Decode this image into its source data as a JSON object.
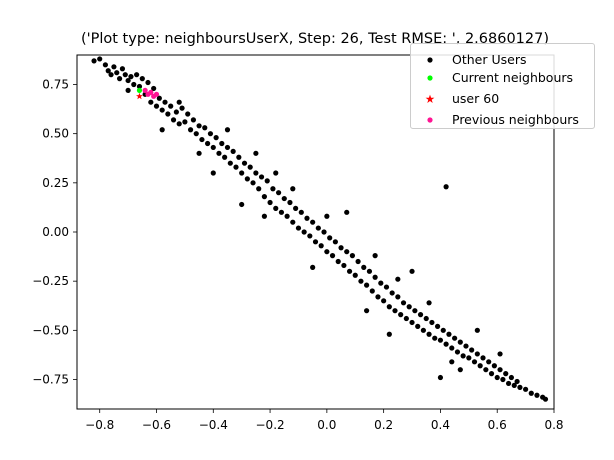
{
  "title": "('Plot type: neighboursUserX, Step: 26, Test RMSE: ', 2.6860127)",
  "legend": [
    {
      "label": "Other Users",
      "color": "#000000",
      "marker": "dot"
    },
    {
      "label": "Current neighbours",
      "color": "#00ff00",
      "marker": "dot"
    },
    {
      "label": "user 60",
      "color": "#ff0000",
      "marker": "star"
    },
    {
      "label": "Previous neighbours",
      "color": "#ff1493",
      "marker": "dot"
    }
  ],
  "chart_data": {
    "type": "scatter",
    "title": "('Plot type: neighboursUserX, Step: 26, Test RMSE: ', 2.6860127)",
    "xlabel": "",
    "ylabel": "",
    "xlim": [
      -0.88,
      0.8
    ],
    "ylim": [
      -0.9,
      0.9
    ],
    "xticks": [
      "−0.8",
      "−0.6",
      "−0.4",
      "−0.2",
      "0.0",
      "0.2",
      "0.4",
      "0.6",
      "0.8"
    ],
    "yticks": [
      "−0.75",
      "−0.50",
      "−0.25",
      "0.00",
      "0.25",
      "0.50",
      "0.75"
    ],
    "grid": false,
    "legend_position": "top-right",
    "series": [
      {
        "name": "Other Users",
        "color": "#000000",
        "marker": "dot",
        "points": [
          [
            -0.82,
            0.87
          ],
          [
            -0.8,
            0.88
          ],
          [
            -0.78,
            0.85
          ],
          [
            -0.77,
            0.82
          ],
          [
            -0.76,
            0.8
          ],
          [
            -0.75,
            0.84
          ],
          [
            -0.74,
            0.81
          ],
          [
            -0.73,
            0.78
          ],
          [
            -0.72,
            0.83
          ],
          [
            -0.71,
            0.8
          ],
          [
            -0.7,
            0.77
          ],
          [
            -0.7,
            0.72
          ],
          [
            -0.69,
            0.79
          ],
          [
            -0.68,
            0.75
          ],
          [
            -0.67,
            0.8
          ],
          [
            -0.66,
            0.74
          ],
          [
            -0.65,
            0.78
          ],
          [
            -0.64,
            0.7
          ],
          [
            -0.63,
            0.76
          ],
          [
            -0.62,
            0.66
          ],
          [
            -0.61,
            0.73
          ],
          [
            -0.6,
            0.64
          ],
          [
            -0.59,
            0.68
          ],
          [
            -0.58,
            0.62
          ],
          [
            -0.57,
            0.66
          ],
          [
            -0.56,
            0.6
          ],
          [
            -0.55,
            0.64
          ],
          [
            -0.54,
            0.57
          ],
          [
            -0.53,
            0.61
          ],
          [
            -0.52,
            0.55
          ],
          [
            -0.51,
            0.63
          ],
          [
            -0.5,
            0.56
          ],
          [
            -0.49,
            0.6
          ],
          [
            -0.48,
            0.52
          ],
          [
            -0.47,
            0.57
          ],
          [
            -0.46,
            0.5
          ],
          [
            -0.45,
            0.54
          ],
          [
            -0.44,
            0.47
          ],
          [
            -0.43,
            0.53
          ],
          [
            -0.42,
            0.45
          ],
          [
            -0.41,
            0.5
          ],
          [
            -0.4,
            0.43
          ],
          [
            -0.39,
            0.48
          ],
          [
            -0.38,
            0.4
          ],
          [
            -0.37,
            0.45
          ],
          [
            -0.36,
            0.38
          ],
          [
            -0.35,
            0.43
          ],
          [
            -0.34,
            0.35
          ],
          [
            -0.33,
            0.41
          ],
          [
            -0.32,
            0.33
          ],
          [
            -0.31,
            0.38
          ],
          [
            -0.3,
            0.3
          ],
          [
            -0.29,
            0.35
          ],
          [
            -0.28,
            0.27
          ],
          [
            -0.27,
            0.33
          ],
          [
            -0.26,
            0.25
          ],
          [
            -0.25,
            0.3
          ],
          [
            -0.24,
            0.22
          ],
          [
            -0.23,
            0.28
          ],
          [
            -0.22,
            0.18
          ],
          [
            -0.21,
            0.26
          ],
          [
            -0.2,
            0.15
          ],
          [
            -0.19,
            0.22
          ],
          [
            -0.18,
            0.12
          ],
          [
            -0.17,
            0.2
          ],
          [
            -0.16,
            0.1
          ],
          [
            -0.15,
            0.17
          ],
          [
            -0.14,
            0.08
          ],
          [
            -0.13,
            0.15
          ],
          [
            -0.12,
            0.05
          ],
          [
            -0.11,
            0.12
          ],
          [
            -0.1,
            0.02
          ],
          [
            -0.09,
            0.1
          ],
          [
            -0.08,
            0.0
          ],
          [
            -0.07,
            0.07
          ],
          [
            -0.06,
            -0.02
          ],
          [
            -0.05,
            0.05
          ],
          [
            -0.04,
            -0.05
          ],
          [
            -0.03,
            0.02
          ],
          [
            -0.02,
            -0.07
          ],
          [
            -0.01,
            0.0
          ],
          [
            0.0,
            -0.1
          ],
          [
            0.01,
            -0.03
          ],
          [
            0.02,
            -0.12
          ],
          [
            0.03,
            -0.05
          ],
          [
            0.04,
            -0.15
          ],
          [
            0.05,
            -0.08
          ],
          [
            0.06,
            -0.17
          ],
          [
            0.07,
            -0.1
          ],
          [
            0.08,
            -0.2
          ],
          [
            0.09,
            -0.12
          ],
          [
            0.1,
            -0.22
          ],
          [
            0.11,
            -0.15
          ],
          [
            0.12,
            -0.25
          ],
          [
            0.13,
            -0.18
          ],
          [
            0.14,
            -0.27
          ],
          [
            0.15,
            -0.2
          ],
          [
            0.16,
            -0.3
          ],
          [
            0.17,
            -0.23
          ],
          [
            0.18,
            -0.33
          ],
          [
            0.19,
            -0.26
          ],
          [
            0.2,
            -0.35
          ],
          [
            0.21,
            -0.28
          ],
          [
            0.22,
            -0.38
          ],
          [
            0.23,
            -0.31
          ],
          [
            0.24,
            -0.4
          ],
          [
            0.25,
            -0.33
          ],
          [
            0.26,
            -0.42
          ],
          [
            0.27,
            -0.36
          ],
          [
            0.28,
            -0.44
          ],
          [
            0.29,
            -0.38
          ],
          [
            0.3,
            -0.46
          ],
          [
            0.31,
            -0.4
          ],
          [
            0.32,
            -0.48
          ],
          [
            0.33,
            -0.42
          ],
          [
            0.34,
            -0.5
          ],
          [
            0.35,
            -0.44
          ],
          [
            0.36,
            -0.52
          ],
          [
            0.37,
            -0.46
          ],
          [
            0.38,
            -0.54
          ],
          [
            0.39,
            -0.48
          ],
          [
            0.4,
            -0.55
          ],
          [
            0.41,
            -0.5
          ],
          [
            0.42,
            -0.57
          ],
          [
            0.43,
            -0.52
          ],
          [
            0.44,
            -0.59
          ],
          [
            0.45,
            -0.54
          ],
          [
            0.46,
            -0.61
          ],
          [
            0.47,
            -0.56
          ],
          [
            0.48,
            -0.63
          ],
          [
            0.49,
            -0.58
          ],
          [
            0.5,
            -0.64
          ],
          [
            0.51,
            -0.6
          ],
          [
            0.52,
            -0.66
          ],
          [
            0.53,
            -0.62
          ],
          [
            0.54,
            -0.68
          ],
          [
            0.55,
            -0.64
          ],
          [
            0.56,
            -0.7
          ],
          [
            0.57,
            -0.66
          ],
          [
            0.58,
            -0.72
          ],
          [
            0.59,
            -0.68
          ],
          [
            0.6,
            -0.74
          ],
          [
            0.61,
            -0.7
          ],
          [
            0.62,
            -0.75
          ],
          [
            0.63,
            -0.72
          ],
          [
            0.64,
            -0.77
          ],
          [
            0.65,
            -0.74
          ],
          [
            0.66,
            -0.78
          ],
          [
            0.67,
            -0.76
          ],
          [
            0.68,
            -0.79
          ],
          [
            0.7,
            -0.8
          ],
          [
            0.72,
            -0.82
          ],
          [
            0.74,
            -0.83
          ],
          [
            0.76,
            -0.84
          ],
          [
            0.77,
            -0.85
          ],
          [
            0.42,
            0.23
          ],
          [
            0.4,
            -0.74
          ],
          [
            0.53,
            -0.5
          ],
          [
            0.47,
            -0.7
          ],
          [
            -0.45,
            0.4
          ],
          [
            -0.3,
            0.14
          ],
          [
            -0.25,
            0.4
          ],
          [
            0.07,
            0.1
          ],
          [
            -0.18,
            0.3
          ],
          [
            0.3,
            -0.2
          ],
          [
            0.22,
            -0.52
          ],
          [
            0.36,
            -0.36
          ],
          [
            -0.05,
            -0.18
          ],
          [
            0.14,
            -0.4
          ],
          [
            -0.35,
            0.52
          ],
          [
            -0.52,
            0.66
          ],
          [
            -0.58,
            0.52
          ],
          [
            -0.4,
            0.3
          ],
          [
            0.0,
            0.08
          ],
          [
            0.17,
            -0.12
          ],
          [
            0.44,
            -0.66
          ],
          [
            0.61,
            -0.62
          ],
          [
            0.25,
            -0.24
          ],
          [
            -0.12,
            0.22
          ],
          [
            -0.22,
            0.08
          ]
        ]
      },
      {
        "name": "Current neighbours",
        "color": "#00ff00",
        "marker": "dot",
        "points": [
          [
            -0.66,
            0.72
          ]
        ]
      },
      {
        "name": "user 60",
        "color": "#ff0000",
        "marker": "star",
        "points": [
          [
            -0.66,
            0.69
          ]
        ]
      },
      {
        "name": "Previous neighbours",
        "color": "#ff1493",
        "marker": "dot",
        "points": [
          [
            -0.64,
            0.72
          ],
          [
            -0.63,
            0.7
          ],
          [
            -0.62,
            0.71
          ],
          [
            -0.61,
            0.69
          ],
          [
            -0.6,
            0.7
          ]
        ]
      }
    ]
  }
}
